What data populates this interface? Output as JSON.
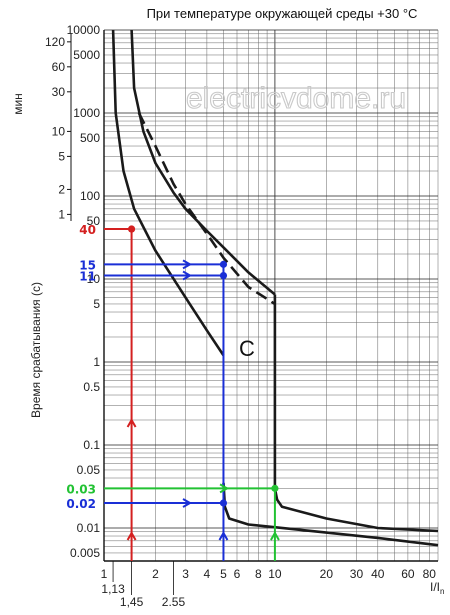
{
  "chart_data": {
    "type": "line",
    "title": "При температуре окружающей среды +30 °C",
    "watermark": "electricvdome.ru",
    "ylabel": "Время срабатывания (с)",
    "ylabel_minutes": "мин",
    "xlabel": "I/I",
    "xlabel_sub": "n",
    "curve_label": "C",
    "x_scale": "log",
    "y_scale": "log",
    "xlim": [
      1,
      90
    ],
    "ylim": [
      0.004,
      10000
    ],
    "grid": true,
    "x_ticks": [
      {
        "v": 1,
        "label": "1"
      },
      {
        "v": 2,
        "label": "2"
      },
      {
        "v": 3,
        "label": "3"
      },
      {
        "v": 4,
        "label": "4"
      },
      {
        "v": 5,
        "label": "5"
      },
      {
        "v": 6,
        "label": "6"
      },
      {
        "v": 8,
        "label": "8"
      },
      {
        "v": 10,
        "label": "10"
      },
      {
        "v": 20,
        "label": "20"
      },
      {
        "v": 30,
        "label": "30"
      },
      {
        "v": 40,
        "label": "40"
      },
      {
        "v": 60,
        "label": "60"
      },
      {
        "v": 80,
        "label": "80"
      }
    ],
    "x_ticks_lower": [
      {
        "v": 1.13,
        "label": "1,13",
        "row": 1
      },
      {
        "v": 1.45,
        "label": "1,45",
        "row": 2
      },
      {
        "v": 2.55,
        "label": "2.55",
        "row": 2
      }
    ],
    "y_ticks": [
      {
        "v": 0.005,
        "label": "0.005"
      },
      {
        "v": 0.01,
        "label": "0.01"
      },
      {
        "v": 0.05,
        "label": "0.05"
      },
      {
        "v": 0.1,
        "label": "0.1"
      },
      {
        "v": 0.5,
        "label": "0.5"
      },
      {
        "v": 1,
        "label": "1"
      },
      {
        "v": 5,
        "label": "5"
      },
      {
        "v": 10,
        "label": "10"
      },
      {
        "v": 50,
        "label": "50"
      },
      {
        "v": 100,
        "label": "100"
      },
      {
        "v": 500,
        "label": "500"
      },
      {
        "v": 1000,
        "label": "1000"
      },
      {
        "v": 5000,
        "label": "5000"
      },
      {
        "v": 10000,
        "label": "10000"
      }
    ],
    "minute_ticks": [
      {
        "v": 7200,
        "label": "120"
      },
      {
        "v": 3600,
        "label": "60"
      },
      {
        "v": 1800,
        "label": "30"
      },
      {
        "v": 600,
        "label": "10"
      },
      {
        "v": 300,
        "label": "5"
      },
      {
        "v": 120,
        "label": "2"
      },
      {
        "v": 60,
        "label": "1"
      }
    ],
    "series": [
      {
        "style": "solid",
        "points": [
          [
            1.13,
            10000
          ],
          [
            1.17,
            1000
          ],
          [
            1.3,
            200
          ],
          [
            1.5,
            70
          ],
          [
            2,
            22
          ],
          [
            3,
            6
          ],
          [
            4,
            2.4
          ],
          [
            5,
            1.2
          ]
        ]
      },
      {
        "style": "solid",
        "points": [
          [
            1.45,
            10000
          ],
          [
            1.5,
            2000
          ],
          [
            1.7,
            600
          ],
          [
            2,
            250
          ],
          [
            2.55,
            110
          ],
          [
            3,
            70
          ],
          [
            4,
            38
          ],
          [
            5,
            24
          ],
          [
            7,
            12
          ],
          [
            10,
            6.5
          ]
        ]
      },
      {
        "style": "dashed",
        "points": [
          [
            1.6,
            1000
          ],
          [
            2,
            400
          ],
          [
            2.55,
            140
          ],
          [
            3,
            80
          ],
          [
            4,
            35
          ],
          [
            5,
            18
          ],
          [
            7,
            8
          ],
          [
            10,
            5
          ]
        ]
      },
      {
        "style": "solid",
        "points": [
          [
            10,
            6.5
          ],
          [
            10,
            0.03
          ],
          [
            10.3,
            0.022
          ],
          [
            11,
            0.018
          ],
          [
            20,
            0.013
          ],
          [
            40,
            0.01
          ],
          [
            90,
            0.0092
          ]
        ]
      },
      {
        "style": "solid",
        "points": [
          [
            5,
            0.035
          ],
          [
            5.1,
            0.018
          ],
          [
            5.4,
            0.013
          ],
          [
            7,
            0.011
          ],
          [
            20,
            0.0088
          ],
          [
            40,
            0.0076
          ],
          [
            90,
            0.0062
          ]
        ]
      }
    ],
    "annotations": [
      {
        "label": "40",
        "color": "#d42020",
        "y": 40,
        "x_from": 1,
        "x_to": 1.45,
        "vx": 1.45,
        "vy_from": 0.004,
        "vy_to": 40
      },
      {
        "label": "15",
        "color": "#1a2fd6",
        "y": 15,
        "x_from": 1,
        "x_to": 5,
        "vx": 5,
        "vy_from": 0.004,
        "vy_to": 15
      },
      {
        "label": "11",
        "color": "#1a2fd6",
        "y": 11,
        "x_from": 1,
        "x_to": 5
      },
      {
        "label": "0.03",
        "color": "#22c233",
        "y": 0.03,
        "x_from": 1,
        "x_to": 10,
        "vx": 10,
        "vy_from": 0.004,
        "vy_to": 0.03
      },
      {
        "label": "0.02",
        "color": "#1a2fd6",
        "y": 0.02,
        "x_from": 1,
        "x_to": 5
      }
    ]
  }
}
